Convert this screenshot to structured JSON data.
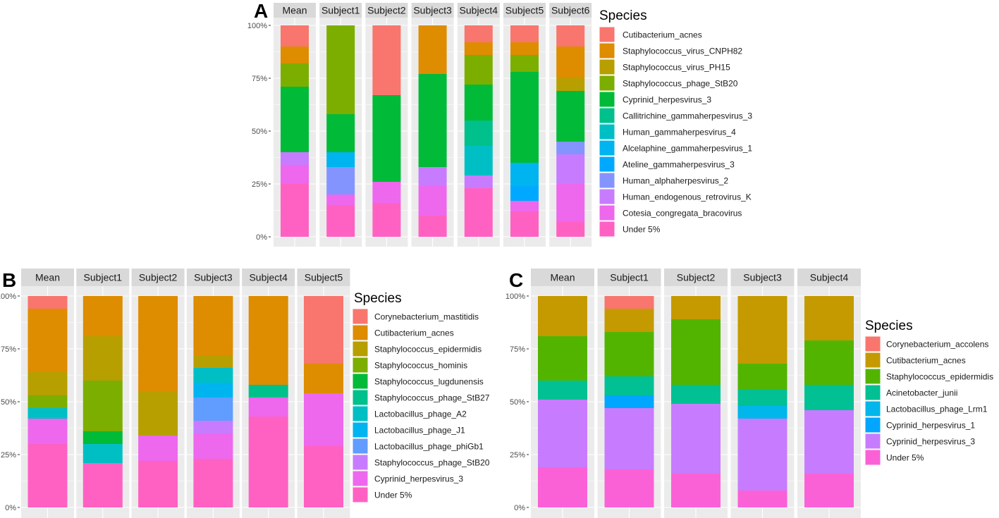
{
  "chart_data": [
    {
      "panel": "A",
      "type": "bar",
      "stacked": true,
      "title": "",
      "xlabel": "",
      "ylabel": "",
      "ylim": [
        0,
        1
      ],
      "yticks": [
        "0%",
        "25%",
        "50%",
        "75%",
        "100%"
      ],
      "legend_title": "Species",
      "legend_position": "right",
      "categories": [
        "Mean",
        "Subject1",
        "Subject2",
        "Subject3",
        "Subject4",
        "Subject5",
        "Subject6"
      ],
      "series": [
        {
          "name": "Cutibacterium_acnes",
          "color": "#F8766D",
          "values": [
            0.1,
            0.0,
            0.33,
            0.0,
            0.08,
            0.08,
            0.1
          ]
        },
        {
          "name": "Staphylococcus_virus_CNPH82",
          "color": "#DE8C00",
          "values": [
            0.08,
            0.0,
            0.0,
            0.23,
            0.06,
            0.06,
            0.15
          ]
        },
        {
          "name": "Staphylococcus_virus_PH15",
          "color": "#B79F00",
          "values": [
            0.0,
            0.0,
            0.0,
            0.0,
            0.0,
            0.0,
            0.06
          ]
        },
        {
          "name": "Staphylococcus_phage_StB20",
          "color": "#7CAE00",
          "values": [
            0.11,
            0.42,
            0.0,
            0.0,
            0.14,
            0.08,
            0.0
          ]
        },
        {
          "name": "Cyprinid_herpesvirus_3",
          "color": "#00BA38",
          "values": [
            0.31,
            0.18,
            0.41,
            0.44,
            0.17,
            0.43,
            0.24
          ]
        },
        {
          "name": "Callitrichine_gammaherpesvirus_3",
          "color": "#00C08B",
          "values": [
            0.0,
            0.0,
            0.0,
            0.0,
            0.12,
            0.0,
            0.0
          ]
        },
        {
          "name": "Human_gammaherpesvirus_4",
          "color": "#00BFC4",
          "values": [
            0.0,
            0.0,
            0.0,
            0.0,
            0.14,
            0.0,
            0.0
          ]
        },
        {
          "name": "Alcelaphine_gammaherpesvirus_1",
          "color": "#00B4F0",
          "values": [
            0.0,
            0.07,
            0.0,
            0.0,
            0.0,
            0.11,
            0.0
          ]
        },
        {
          "name": "Ateline_gammaherpesvirus_3",
          "color": "#00A9FF",
          "values": [
            0.0,
            0.0,
            0.0,
            0.0,
            0.0,
            0.07,
            0.0
          ]
        },
        {
          "name": "Human_alphaherpesvirus_2",
          "color": "#8494FF",
          "values": [
            0.0,
            0.13,
            0.0,
            0.0,
            0.0,
            0.0,
            0.06
          ]
        },
        {
          "name": "Human_endogenous_retrovirus_K",
          "color": "#C77CFF",
          "values": [
            0.06,
            0.0,
            0.0,
            0.09,
            0.06,
            0.0,
            0.14
          ]
        },
        {
          "name": "Cotesia_congregata_bracovirus",
          "color": "#ED68ED",
          "values": [
            0.09,
            0.05,
            0.1,
            0.14,
            0.0,
            0.05,
            0.18
          ]
        },
        {
          "name": "Under 5%",
          "color": "#FF61C3",
          "values": [
            0.25,
            0.15,
            0.16,
            0.1,
            0.23,
            0.12,
            0.07
          ]
        }
      ]
    },
    {
      "panel": "B",
      "type": "bar",
      "stacked": true,
      "title": "",
      "xlabel": "",
      "ylabel": "",
      "ylim": [
        0,
        1
      ],
      "yticks": [
        "0%",
        "25%",
        "50%",
        "75%",
        "100%"
      ],
      "legend_title": "Species",
      "legend_position": "right",
      "categories": [
        "Mean",
        "Subject1",
        "Subject2",
        "Subject3",
        "Subject4",
        "Subject5"
      ],
      "series": [
        {
          "name": "Corynebacterium_mastitidis",
          "color": "#F8766D",
          "values": [
            0.06,
            0.0,
            0.0,
            0.0,
            0.0,
            0.32
          ]
        },
        {
          "name": "Cutibacterium_acnes",
          "color": "#DE8C00",
          "values": [
            0.3,
            0.19,
            0.45,
            0.28,
            0.42,
            0.14
          ]
        },
        {
          "name": "Staphylococcus_epidermidis",
          "color": "#B79F00",
          "values": [
            0.11,
            0.21,
            0.21,
            0.06,
            0.0,
            0.0
          ]
        },
        {
          "name": "Staphylococcus_hominis",
          "color": "#7CAE00",
          "values": [
            0.06,
            0.24,
            0.0,
            0.0,
            0.0,
            0.0
          ]
        },
        {
          "name": "Staphylococcus_lugdunensis",
          "color": "#00BA38",
          "values": [
            0.0,
            0.06,
            0.0,
            0.0,
            0.0,
            0.0
          ]
        },
        {
          "name": "Staphylococcus_phage_StB27",
          "color": "#00C08B",
          "values": [
            0.0,
            0.0,
            0.0,
            0.0,
            0.06,
            0.0
          ]
        },
        {
          "name": "Lactobacillus_phage_A2",
          "color": "#00BFC4",
          "values": [
            0.05,
            0.09,
            0.0,
            0.07,
            0.0,
            0.0
          ]
        },
        {
          "name": "Lactobacillus_phage_J1",
          "color": "#00B4F0",
          "values": [
            0.0,
            0.0,
            0.0,
            0.07,
            0.0,
            0.0
          ]
        },
        {
          "name": "Lactobacillus_phage_phiGb1",
          "color": "#619CFF",
          "values": [
            0.0,
            0.0,
            0.0,
            0.11,
            0.0,
            0.0
          ]
        },
        {
          "name": "Staphylococcus_phage_StB20",
          "color": "#C77CFF",
          "values": [
            0.0,
            0.0,
            0.0,
            0.06,
            0.0,
            0.0
          ]
        },
        {
          "name": "Cyprinid_herpesvirus_3",
          "color": "#ED68ED",
          "values": [
            0.12,
            0.0,
            0.12,
            0.12,
            0.09,
            0.25
          ]
        },
        {
          "name": "Under 5%",
          "color": "#FF61C3",
          "values": [
            0.3,
            0.21,
            0.22,
            0.23,
            0.43,
            0.29
          ]
        }
      ]
    },
    {
      "panel": "C",
      "type": "bar",
      "stacked": true,
      "title": "",
      "xlabel": "",
      "ylabel": "",
      "ylim": [
        0,
        1
      ],
      "yticks": [
        "0%",
        "25%",
        "50%",
        "75%",
        "100%"
      ],
      "legend_title": "Species",
      "legend_position": "right",
      "categories": [
        "Mean",
        "Subject1",
        "Subject2",
        "Subject3",
        "Subject4"
      ],
      "series": [
        {
          "name": "Corynebacterium_accolens",
          "color": "#F8766D",
          "values": [
            0.0,
            0.06,
            0.0,
            0.0,
            0.0
          ]
        },
        {
          "name": "Cutibacterium_acnes",
          "color": "#C49A00",
          "values": [
            0.19,
            0.11,
            0.11,
            0.32,
            0.21
          ]
        },
        {
          "name": "Staphylococcus_epidermidis",
          "color": "#53B400",
          "values": [
            0.21,
            0.21,
            0.31,
            0.12,
            0.21
          ]
        },
        {
          "name": "Acinetobacter_junii",
          "color": "#00C094",
          "values": [
            0.09,
            0.09,
            0.09,
            0.08,
            0.12
          ]
        },
        {
          "name": "Lactobacillus_phage_Lrm1",
          "color": "#00B6EB",
          "values": [
            0.0,
            0.0,
            0.0,
            0.06,
            0.0
          ]
        },
        {
          "name": "Cyprinid_herpesvirus_1",
          "color": "#00A6FF",
          "values": [
            0.0,
            0.06,
            0.0,
            0.0,
            0.0
          ]
        },
        {
          "name": "Cyprinid_herpesvirus_3",
          "color": "#C77CFF",
          "values": [
            0.32,
            0.29,
            0.33,
            0.34,
            0.3
          ]
        },
        {
          "name": "Under 5%",
          "color": "#FB61D7",
          "values": [
            0.19,
            0.18,
            0.16,
            0.08,
            0.16
          ]
        }
      ]
    }
  ],
  "ui": {
    "panel_bg": "#EBEBEB",
    "strip_bg": "#D9D9D9",
    "grid_color": "#FFFFFF"
  }
}
